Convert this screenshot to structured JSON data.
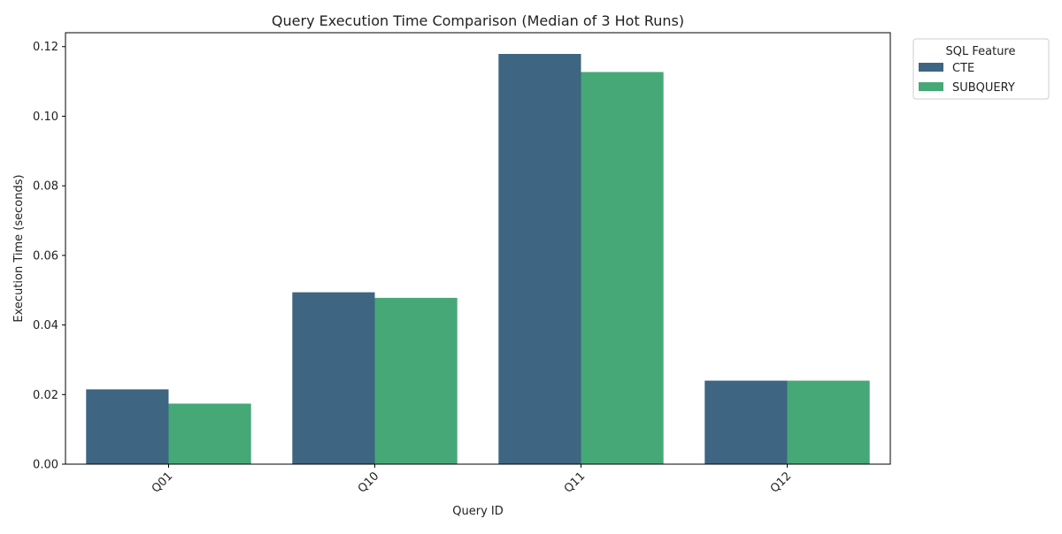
{
  "chart_data": {
    "type": "bar",
    "title": "Query Execution Time Comparison (Median of 3 Hot Runs)",
    "xlabel": "Query ID",
    "ylabel": "Execution Time (seconds)",
    "categories": [
      "Q01",
      "Q10",
      "Q11",
      "Q12"
    ],
    "series": [
      {
        "name": "CTE",
        "color": "#3e6582",
        "values": [
          0.0215,
          0.0494,
          0.1179,
          0.024
        ]
      },
      {
        "name": "SUBQUERY",
        "color": "#46a877",
        "values": [
          0.0174,
          0.0478,
          0.1127,
          0.024
        ]
      }
    ],
    "ylim": [
      0,
      0.124
    ],
    "yticks": [
      "0.00",
      "0.02",
      "0.04",
      "0.06",
      "0.08",
      "0.10",
      "0.12"
    ],
    "grid": false,
    "legend": {
      "title": "SQL Feature",
      "placement": "outside-top-right"
    }
  }
}
